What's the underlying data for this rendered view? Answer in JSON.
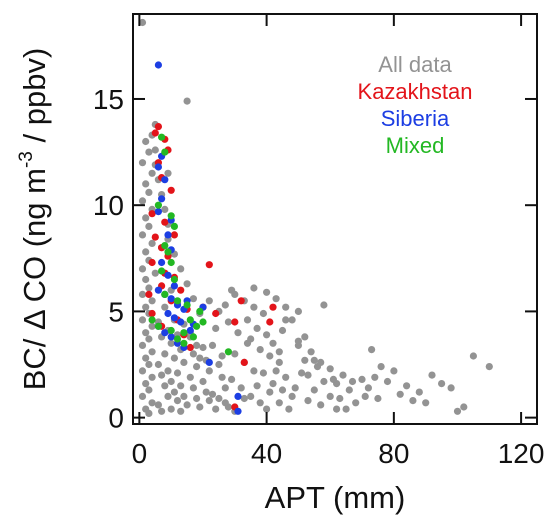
{
  "chart_data": {
    "type": "scatter",
    "xlabel": "APT (mm)",
    "ylabel": {
      "before": "BC/ Δ CO (ng m",
      "sup": "-3",
      "after": " / ppbv)"
    },
    "xlim": [
      -2,
      125
    ],
    "ylim": [
      -0.3,
      19
    ],
    "x_ticks": [
      0,
      40,
      80,
      120
    ],
    "y_ticks": [
      0,
      5,
      10,
      15
    ],
    "grid": false,
    "legend_placement": "top-right",
    "legend": [
      {
        "label": "All data",
        "color": "#939393"
      },
      {
        "label": "Kazakhstan",
        "color": "#e3141a"
      },
      {
        "label": "Siberia",
        "color": "#1c3ee3"
      },
      {
        "label": "Mixed",
        "color": "#23b823"
      }
    ],
    "series": [
      {
        "name": "All data",
        "color": "#939393",
        "points": [
          [
            1,
            18.6
          ],
          [
            15,
            14.9
          ],
          [
            2,
            13
          ],
          [
            3,
            12.5
          ],
          [
            1,
            12
          ],
          [
            4,
            11.5
          ],
          [
            2,
            11
          ],
          [
            3,
            10.6
          ],
          [
            1,
            10.2
          ],
          [
            4,
            9.8
          ],
          [
            2,
            9.4
          ],
          [
            3,
            9
          ],
          [
            1,
            8.6
          ],
          [
            4,
            8.2
          ],
          [
            2,
            7.8
          ],
          [
            3,
            7.4
          ],
          [
            1,
            7
          ],
          [
            5,
            6.8
          ],
          [
            2,
            6.5
          ],
          [
            3,
            6.1
          ],
          [
            1,
            5.8
          ],
          [
            4,
            5.5
          ],
          [
            2,
            5.2
          ],
          [
            3,
            4.9
          ],
          [
            1,
            4.6
          ],
          [
            4,
            4.3
          ],
          [
            2,
            4
          ],
          [
            3,
            3.7
          ],
          [
            1,
            3.4
          ],
          [
            4,
            3.1
          ],
          [
            2,
            2.8
          ],
          [
            3,
            2.5
          ],
          [
            1,
            2.2
          ],
          [
            4,
            1.9
          ],
          [
            2,
            1.6
          ],
          [
            3,
            1.3
          ],
          [
            1,
            1
          ],
          [
            4,
            0.7
          ],
          [
            2,
            0.4
          ],
          [
            3,
            0.2
          ],
          [
            6,
            4.5
          ],
          [
            7,
            3.8
          ],
          [
            8,
            3
          ],
          [
            6,
            2.5
          ],
          [
            7,
            2
          ],
          [
            8,
            1.5
          ],
          [
            9,
            1
          ],
          [
            6,
            0.6
          ],
          [
            7,
            0.3
          ],
          [
            8,
            5.2
          ],
          [
            9,
            4.1
          ],
          [
            10,
            3.5
          ],
          [
            11,
            2.8
          ],
          [
            9,
            2.2
          ],
          [
            10,
            1.7
          ],
          [
            11,
            1.2
          ],
          [
            12,
            0.8
          ],
          [
            10,
            0.4
          ],
          [
            11,
            4.6
          ],
          [
            12,
            3.9
          ],
          [
            13,
            3.2
          ],
          [
            14,
            2.6
          ],
          [
            12,
            2.1
          ],
          [
            13,
            1.5
          ],
          [
            14,
            1
          ],
          [
            15,
            0.6
          ],
          [
            13,
            0.3
          ],
          [
            16,
            3.8
          ],
          [
            17,
            3
          ],
          [
            18,
            2.4
          ],
          [
            16,
            1.9
          ],
          [
            17,
            1.4
          ],
          [
            18,
            0.9
          ],
          [
            19,
            0.5
          ],
          [
            20,
            3.3
          ],
          [
            21,
            2.7
          ],
          [
            22,
            2.2
          ],
          [
            20,
            1.7
          ],
          [
            21,
            1.2
          ],
          [
            22,
            0.8
          ],
          [
            24,
            0.4
          ],
          [
            25,
            2.5
          ],
          [
            26,
            1.9
          ],
          [
            27,
            1.4
          ],
          [
            25,
            0.9
          ],
          [
            28,
            0.5
          ],
          [
            30,
            0.3
          ],
          [
            22,
            5.5
          ],
          [
            25,
            5
          ],
          [
            28,
            4.5
          ],
          [
            31,
            4
          ],
          [
            34,
            3.5
          ],
          [
            30,
            3
          ],
          [
            33,
            2.6
          ],
          [
            36,
            2.2
          ],
          [
            29,
            1.8
          ],
          [
            32,
            1.4
          ],
          [
            35,
            1
          ],
          [
            38,
            0.7
          ],
          [
            40,
            0.4
          ],
          [
            30,
            5.8
          ],
          [
            33,
            5.5
          ],
          [
            36,
            5.2
          ],
          [
            39,
            4.9
          ],
          [
            34,
            4.6
          ],
          [
            37,
            4.2
          ],
          [
            40,
            3.9
          ],
          [
            42,
            3.5
          ],
          [
            38,
            3.2
          ],
          [
            41,
            2.9
          ],
          [
            44,
            2.6
          ],
          [
            43,
            2.2
          ],
          [
            46,
            1.9
          ],
          [
            42,
            1.6
          ],
          [
            45,
            1.3
          ],
          [
            48,
            1
          ],
          [
            44,
            0.7
          ],
          [
            47,
            0.4
          ],
          [
            36,
            6.1
          ],
          [
            40,
            5.9
          ],
          [
            43,
            5.6
          ],
          [
            46,
            5.2
          ],
          [
            50,
            5
          ],
          [
            48,
            4.6
          ],
          [
            45,
            4.1
          ],
          [
            52,
            3.8
          ],
          [
            50,
            3.4
          ],
          [
            54,
            3.1
          ],
          [
            52,
            2.7
          ],
          [
            56,
            2.4
          ],
          [
            53,
            2
          ],
          [
            58,
            1.7
          ],
          [
            55,
            1.3
          ],
          [
            60,
            1
          ],
          [
            57,
            0.6
          ],
          [
            62,
            0.4
          ],
          [
            60,
            2.3
          ],
          [
            64,
            2
          ],
          [
            62,
            1.6
          ],
          [
            66,
            1.3
          ],
          [
            63,
            0.9
          ],
          [
            68,
            0.7
          ],
          [
            65,
            0.4
          ],
          [
            70,
            1.8
          ],
          [
            72,
            1.4
          ],
          [
            74,
            1.9
          ],
          [
            71,
            1
          ],
          [
            73,
            3.2
          ],
          [
            76,
            2.4
          ],
          [
            80,
            2.2
          ],
          [
            78,
            1.7
          ],
          [
            84,
            1.5
          ],
          [
            82,
            1.1
          ],
          [
            88,
            1.2
          ],
          [
            86,
            0.8
          ],
          [
            92,
            2
          ],
          [
            95,
            1.6
          ],
          [
            98,
            1.4
          ],
          [
            100,
            0.3
          ],
          [
            102,
            0.5
          ],
          [
            105,
            2.9
          ],
          [
            110,
            2.4
          ],
          [
            58,
            5.3
          ],
          [
            50,
            3.6
          ],
          [
            46,
            4.6
          ],
          [
            55,
            2.7
          ],
          [
            67,
            1.7
          ],
          [
            75,
            0.9
          ],
          [
            90,
            0.7
          ],
          [
            44,
            3.1
          ],
          [
            35,
            3.7
          ],
          [
            29,
            6
          ],
          [
            27,
            5.3
          ],
          [
            24,
            4.2
          ],
          [
            19,
            4.9
          ],
          [
            17,
            5.6
          ],
          [
            15,
            6.3
          ],
          [
            13,
            7
          ],
          [
            11,
            7.7
          ],
          [
            9,
            8.4
          ],
          [
            9,
            9.1
          ],
          [
            8,
            9.8
          ],
          [
            7,
            10.5
          ],
          [
            6,
            11.2
          ],
          [
            5,
            11.9
          ],
          [
            5,
            12.6
          ],
          [
            4,
            13.3
          ],
          [
            5,
            13.8
          ],
          [
            9,
            11.5
          ],
          [
            7,
            8
          ],
          [
            8,
            6.8
          ],
          [
            10,
            6
          ],
          [
            12,
            5.4
          ],
          [
            14,
            4.4
          ],
          [
            16,
            4
          ],
          [
            18,
            3.4
          ],
          [
            23,
            3.4
          ],
          [
            26,
            2.9
          ],
          [
            19,
            2.8
          ],
          [
            23,
            1.1
          ],
          [
            27,
            0.7
          ],
          [
            33,
            0.9
          ],
          [
            37,
            1.5
          ],
          [
            39,
            2.1
          ],
          [
            41,
            1.2
          ],
          [
            49,
            1.4
          ],
          [
            51,
            2.1
          ],
          [
            53,
            0.8
          ],
          [
            57,
            2.6
          ],
          [
            61,
            1.8
          ]
        ]
      },
      {
        "name": "Kazakhstan",
        "color": "#e3141a",
        "points": [
          [
            6,
            13.7
          ],
          [
            5,
            13.4
          ],
          [
            8,
            13.1
          ],
          [
            9,
            12.6
          ],
          [
            6,
            12
          ],
          [
            7,
            11.3
          ],
          [
            10,
            10.7
          ],
          [
            4,
            9.6
          ],
          [
            8,
            9.2
          ],
          [
            11,
            8.6
          ],
          [
            5,
            8.5
          ],
          [
            7,
            8
          ],
          [
            9,
            7.6
          ],
          [
            4,
            7.3
          ],
          [
            8,
            6.8
          ],
          [
            7,
            6.2
          ],
          [
            13,
            6
          ],
          [
            3,
            5.8
          ],
          [
            10,
            5.5
          ],
          [
            15,
            5.1
          ],
          [
            4,
            4.9
          ],
          [
            12,
            4.6
          ],
          [
            14,
            3.9
          ],
          [
            16,
            3.3
          ],
          [
            22,
            7.2
          ],
          [
            24,
            4.9
          ],
          [
            30,
            4.5
          ],
          [
            32,
            5.5
          ],
          [
            41,
            4.5
          ],
          [
            42,
            5.2
          ],
          [
            33,
            2.6
          ],
          [
            7,
            4.3
          ],
          [
            20,
            5.2
          ],
          [
            11,
            6.6
          ],
          [
            30,
            0.5
          ]
        ]
      },
      {
        "name": "Siberia",
        "color": "#1c3ee3",
        "points": [
          [
            6,
            16.6
          ],
          [
            7,
            12.3
          ],
          [
            6,
            11.8
          ],
          [
            8,
            11.2
          ],
          [
            7,
            10.3
          ],
          [
            6,
            9.7
          ],
          [
            9,
            8.6
          ],
          [
            10,
            7.9
          ],
          [
            7,
            7.3
          ],
          [
            9,
            6.7
          ],
          [
            11,
            6.2
          ],
          [
            6,
            6
          ],
          [
            8,
            5.8
          ],
          [
            10,
            5.6
          ],
          [
            12,
            5.3
          ],
          [
            14,
            5.1
          ],
          [
            9,
            4.9
          ],
          [
            11,
            4.7
          ],
          [
            13,
            4.5
          ],
          [
            6,
            4.3
          ],
          [
            8,
            4
          ],
          [
            10,
            3.8
          ],
          [
            12,
            3.5
          ],
          [
            14,
            3.3
          ],
          [
            16,
            4.1
          ],
          [
            15,
            5.5
          ],
          [
            17,
            4.4
          ],
          [
            20,
            5.2
          ],
          [
            22,
            2.6
          ],
          [
            31,
            1
          ],
          [
            31,
            0.3
          ],
          [
            10,
            9.3
          ]
        ]
      },
      {
        "name": "Mixed",
        "color": "#23b823",
        "points": [
          [
            7,
            13.2
          ],
          [
            8,
            12.5
          ],
          [
            6,
            10
          ],
          [
            10,
            9.5
          ],
          [
            11,
            9
          ],
          [
            8,
            8.1
          ],
          [
            9,
            7.8
          ],
          [
            10,
            7.3
          ],
          [
            7,
            6.9
          ],
          [
            11,
            6.5
          ],
          [
            8,
            5.8
          ],
          [
            12,
            5.5
          ],
          [
            15,
            5.3
          ],
          [
            4,
            4.6
          ],
          [
            6,
            4.3
          ],
          [
            10,
            4.1
          ],
          [
            14,
            4
          ],
          [
            16,
            4.6
          ],
          [
            18,
            4.3
          ],
          [
            20,
            4.5
          ],
          [
            12,
            3.7
          ],
          [
            14,
            3.5
          ],
          [
            17,
            3.8
          ],
          [
            28,
            3.1
          ],
          [
            19,
            5
          ]
        ]
      }
    ]
  }
}
